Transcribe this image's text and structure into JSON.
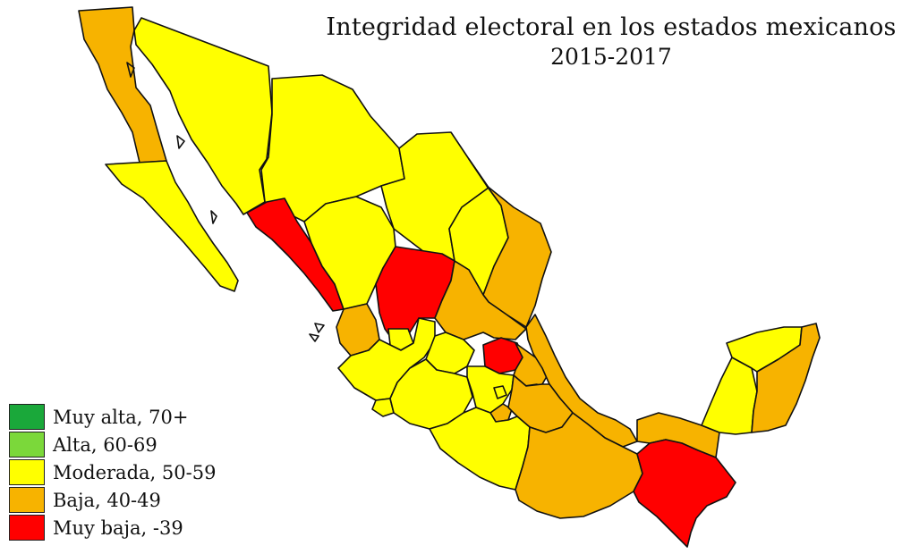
{
  "title": "Integridad electoral en los estados mexicanos",
  "subtitle": "2015-2017",
  "colors": {
    "muy_alta": "#1aa83a",
    "alta": "#7bd83a",
    "moderada": "#ffff00",
    "baja": "#f7b300",
    "muy_baja": "#ff0000"
  },
  "legend": [
    {
      "label": "Muy alta, 70+",
      "category": "muy_alta"
    },
    {
      "label": "Alta, 60-69",
      "category": "alta"
    },
    {
      "label": "Moderada, 50-59",
      "category": "moderada"
    },
    {
      "label": "Baja, 40-49",
      "category": "baja"
    },
    {
      "label": "Muy baja, -39",
      "category": "muy_baja"
    }
  ],
  "map_regions": [
    {
      "id": "baja-california",
      "category": "baja"
    },
    {
      "id": "baja-california-sur",
      "category": "moderada"
    },
    {
      "id": "sonora",
      "category": "moderada"
    },
    {
      "id": "chihuahua",
      "category": "moderada"
    },
    {
      "id": "coahuila",
      "category": "moderada"
    },
    {
      "id": "nuevo-leon",
      "category": "moderada"
    },
    {
      "id": "tamaulipas",
      "category": "baja"
    },
    {
      "id": "sinaloa",
      "category": "muy_baja"
    },
    {
      "id": "durango",
      "category": "moderada"
    },
    {
      "id": "zacatecas",
      "category": "muy_baja"
    },
    {
      "id": "san-luis-potosi",
      "category": "baja"
    },
    {
      "id": "nayarit",
      "category": "baja"
    },
    {
      "id": "aguascalientes",
      "category": "moderada"
    },
    {
      "id": "jalisco",
      "category": "moderada"
    },
    {
      "id": "guanajuato",
      "category": "moderada"
    },
    {
      "id": "queretaro",
      "category": "muy_baja"
    },
    {
      "id": "hidalgo",
      "category": "baja"
    },
    {
      "id": "veracruz",
      "category": "baja"
    },
    {
      "id": "colima",
      "category": "moderada"
    },
    {
      "id": "michoacan",
      "category": "moderada"
    },
    {
      "id": "estado-de-mexico",
      "category": "moderada"
    },
    {
      "id": "cdmx",
      "category": "moderada"
    },
    {
      "id": "morelos",
      "category": "baja"
    },
    {
      "id": "tlaxcala",
      "category": "moderada"
    },
    {
      "id": "puebla",
      "category": "baja"
    },
    {
      "id": "guerrero",
      "category": "moderada"
    },
    {
      "id": "oaxaca",
      "category": "baja"
    },
    {
      "id": "tabasco",
      "category": "baja"
    },
    {
      "id": "chiapas",
      "category": "muy_baja"
    },
    {
      "id": "campeche",
      "category": "moderada"
    },
    {
      "id": "yucatan",
      "category": "moderada"
    },
    {
      "id": "quintana-roo",
      "category": "baja"
    }
  ]
}
